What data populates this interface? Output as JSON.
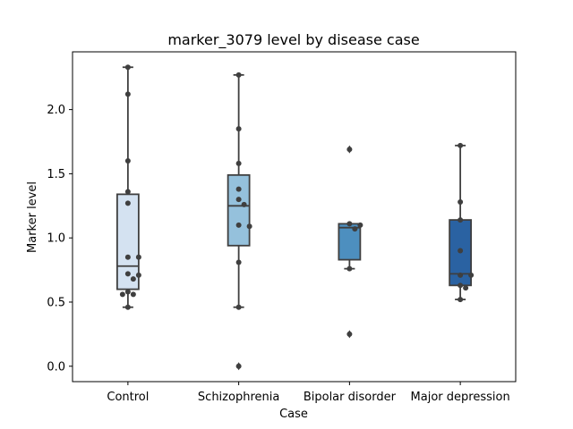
{
  "chart_data": {
    "type": "box",
    "title": "marker_3079 level by disease case",
    "xlabel": "Case",
    "ylabel": "Marker level",
    "categories": [
      "Control",
      "Schizophrenia",
      "Bipolar disorder",
      "Major depression"
    ],
    "ylim": [
      -0.12,
      2.45
    ],
    "yticks": [
      0.0,
      0.5,
      1.0,
      1.5,
      2.0
    ],
    "ytick_labels": [
      "0.0",
      "0.5",
      "1.0",
      "1.5",
      "2.0"
    ],
    "grid": false,
    "boxes": [
      {
        "name": "Control",
        "q1": 0.6,
        "median": 0.78,
        "q3": 1.34,
        "whisker_low": 0.46,
        "whisker_high": 2.33,
        "outliers": [],
        "color": "#d4e2f1"
      },
      {
        "name": "Schizophrenia",
        "q1": 0.94,
        "median": 1.25,
        "q3": 1.49,
        "whisker_low": 0.46,
        "whisker_high": 2.27,
        "outliers": [
          0.0
        ],
        "color": "#95c1dc"
      },
      {
        "name": "Bipolar disorder",
        "q1": 0.83,
        "median": 1.08,
        "q3": 1.11,
        "whisker_low": 0.76,
        "whisker_high": 1.11,
        "outliers": [
          1.69,
          0.25
        ],
        "color": "#4d8fbf"
      },
      {
        "name": "Major depression",
        "q1": 0.63,
        "median": 0.72,
        "q3": 1.14,
        "whisker_low": 0.52,
        "whisker_high": 1.72,
        "outliers": [],
        "color": "#2a62a2"
      }
    ],
    "points": [
      [
        2.33,
        2.12,
        1.6,
        1.36,
        1.27,
        0.85,
        0.85,
        0.72,
        0.71,
        0.68,
        0.58,
        0.56,
        0.56,
        0.46
      ],
      [
        2.27,
        1.85,
        1.58,
        1.38,
        1.3,
        1.26,
        1.1,
        1.09,
        0.81,
        0.46,
        0.0
      ],
      [
        1.69,
        1.11,
        1.1,
        1.07,
        0.76,
        0.25
      ],
      [
        1.72,
        1.28,
        1.14,
        0.9,
        0.71,
        0.71,
        0.63,
        0.61,
        0.52
      ]
    ],
    "colors": {
      "box_edge": "#3f3f3f",
      "point": "#3f3f3f",
      "axis": "#000000"
    }
  }
}
